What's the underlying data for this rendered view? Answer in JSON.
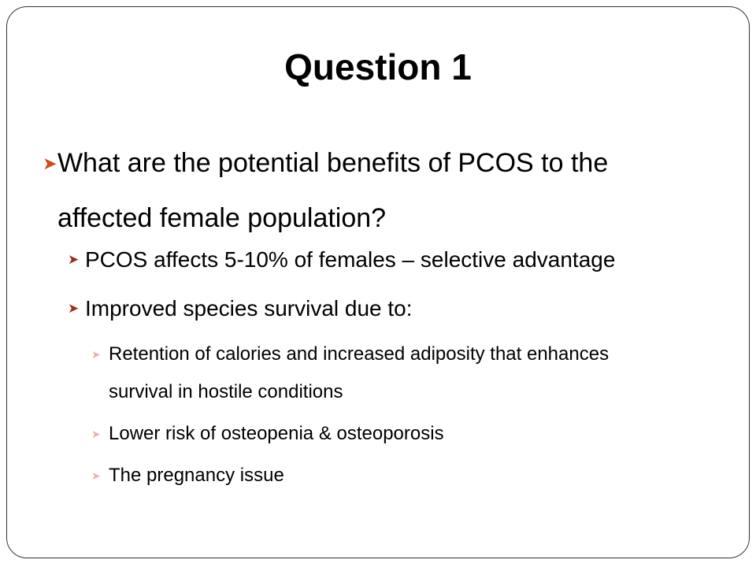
{
  "slide": {
    "title": "Question 1",
    "colors": {
      "level1_bullet": "#d24a18",
      "level2_bullet": "#9b2f1e",
      "level3_bullet": "#e9b3ab"
    },
    "bullets": [
      {
        "level": 1,
        "text": "What are the potential benefits of PCOS to the affected female population?"
      },
      {
        "level": 2,
        "text": "PCOS affects 5-10% of females – selective advantage"
      },
      {
        "level": 2,
        "text": "Improved species survival due to:"
      },
      {
        "level": 3,
        "text": "Retention of calories and increased adiposity that enhances survival in hostile conditions"
      },
      {
        "level": 3,
        "text": "Lower risk of osteopenia & osteoporosis"
      },
      {
        "level": 3,
        "text": "The pregnancy issue"
      }
    ]
  }
}
